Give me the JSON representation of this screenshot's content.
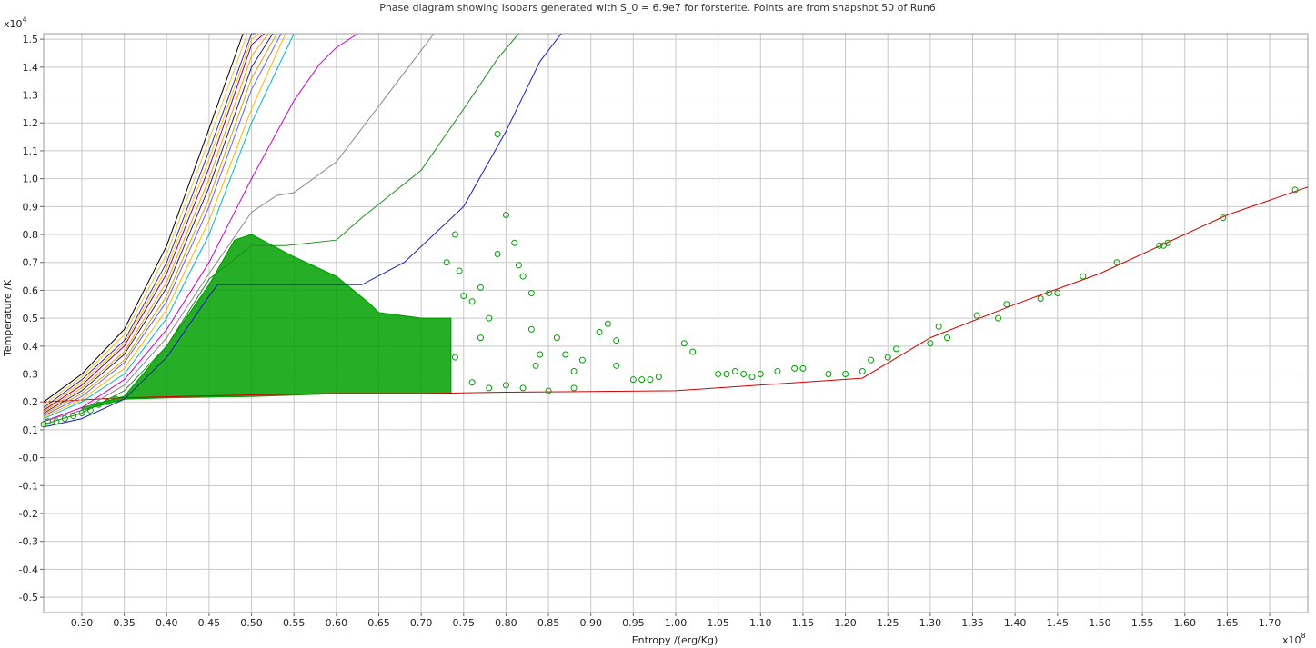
{
  "chart_data": {
    "type": "scatter",
    "title": "Phase diagram showing isobars generated with S_0 = 6.9e7 for forsterite. Points are from snapshot 50 of Run6",
    "xlabel": "Entropy /(erg/Kg)",
    "ylabel": "Temperature /K",
    "x_multiplier_label": "x10",
    "x_multiplier_exp": "8",
    "y_multiplier_label": "x10",
    "y_multiplier_exp": "4",
    "xlim": [
      0.255,
      1.745
    ],
    "ylim": [
      -0.555,
      1.52
    ],
    "x_ticks": [
      0.3,
      0.35,
      0.4,
      0.45,
      0.5,
      0.55,
      0.6,
      0.65,
      0.7,
      0.75,
      0.8,
      0.85,
      0.9,
      0.95,
      1.0,
      1.05,
      1.1,
      1.15,
      1.2,
      1.25,
      1.3,
      1.35,
      1.4,
      1.45,
      1.5,
      1.55,
      1.6,
      1.65,
      1.7
    ],
    "x_tick_labels": [
      "0.30",
      "0.35",
      "0.40",
      "0.45",
      "0.50",
      "0.55",
      "0.60",
      "0.65",
      "0.70",
      "0.75",
      "0.80",
      "0.85",
      "0.90",
      "0.95",
      "1.00",
      "1.05",
      "1.10",
      "1.15",
      "1.20",
      "1.25",
      "1.30",
      "1.35",
      "1.40",
      "1.45",
      "1.50",
      "1.55",
      "1.60",
      "1.65",
      "1.70"
    ],
    "y_ticks": [
      1.5,
      1.4,
      1.3,
      1.2,
      1.1,
      1.0,
      0.9,
      0.8,
      0.7,
      0.6,
      0.5,
      0.4,
      0.3,
      0.2,
      0.1,
      0.0,
      -0.1,
      -0.2,
      -0.3,
      -0.4,
      -0.5
    ],
    "y_tick_labels": [
      "1.5",
      "1.4",
      "1.3",
      "1.2",
      "1.1",
      "1.0",
      "0.9",
      "0.8",
      "0.7",
      "0.6",
      "0.5",
      "0.4",
      "0.3",
      "0.2",
      "0.1",
      "-0.0",
      "-0.1",
      "-0.2",
      "-0.3",
      "-0.4",
      "-0.5"
    ],
    "grid": true,
    "colors": {
      "points": "#00a000",
      "grid": "#c8c8c8",
      "phase_boundary": "#d00000"
    },
    "series": [
      {
        "color": "#d00000",
        "x": [
          0.255,
          0.35,
          0.5,
          0.6,
          0.7,
          0.8,
          1.0,
          1.22,
          1.3,
          1.4,
          1.5,
          1.6,
          1.65,
          1.745
        ],
        "y": [
          0.2,
          0.215,
          0.225,
          0.23,
          0.23,
          0.235,
          0.24,
          0.285,
          0.43,
          0.55,
          0.66,
          0.8,
          0.87,
          0.97
        ]
      },
      {
        "color": "#1a1acc",
        "x": [
          0.255,
          0.3,
          0.35,
          0.4,
          0.45,
          0.46,
          0.62,
          0.63,
          0.68,
          0.75,
          0.8,
          0.84,
          0.865
        ],
        "y": [
          0.11,
          0.14,
          0.21,
          0.36,
          0.58,
          0.62,
          0.62,
          0.62,
          0.7,
          0.9,
          1.17,
          1.42,
          1.52
        ]
      },
      {
        "color": "#1f8f1f",
        "x": [
          0.255,
          0.3,
          0.35,
          0.4,
          0.45,
          0.5,
          0.54,
          0.6,
          0.63,
          0.7,
          0.75,
          0.79,
          0.815
        ],
        "y": [
          0.12,
          0.16,
          0.24,
          0.4,
          0.64,
          0.76,
          0.76,
          0.78,
          0.86,
          1.03,
          1.25,
          1.43,
          1.52
        ]
      },
      {
        "color": "#888888",
        "x": [
          0.255,
          0.3,
          0.35,
          0.4,
          0.45,
          0.5,
          0.53,
          0.55,
          0.6,
          0.65,
          0.7,
          0.715
        ],
        "y": [
          0.13,
          0.17,
          0.26,
          0.43,
          0.66,
          0.88,
          0.94,
          0.95,
          1.06,
          1.26,
          1.46,
          1.52
        ]
      },
      {
        "color": "#cc00cc",
        "x": [
          0.255,
          0.3,
          0.35,
          0.4,
          0.45,
          0.5,
          0.55,
          0.58,
          0.6,
          0.625
        ],
        "y": [
          0.13,
          0.18,
          0.28,
          0.46,
          0.7,
          1.0,
          1.28,
          1.41,
          1.47,
          1.52
        ]
      },
      {
        "color": "#00b8c8",
        "x": [
          0.255,
          0.3,
          0.35,
          0.4,
          0.45,
          0.5,
          0.55
        ],
        "y": [
          0.14,
          0.2,
          0.3,
          0.5,
          0.8,
          1.2,
          1.52
        ]
      },
      {
        "color": "#ffb400",
        "x": [
          0.255,
          0.3,
          0.35,
          0.4,
          0.45,
          0.5,
          0.54
        ],
        "y": [
          0.145,
          0.21,
          0.32,
          0.53,
          0.85,
          1.25,
          1.52
        ]
      },
      {
        "color": "#6060ff",
        "x": [
          0.255,
          0.3,
          0.35,
          0.4,
          0.45,
          0.5,
          0.535
        ],
        "y": [
          0.15,
          0.22,
          0.34,
          0.56,
          0.9,
          1.32,
          1.52
        ]
      },
      {
        "color": "#e0a000",
        "x": [
          0.255,
          0.3,
          0.35,
          0.4,
          0.45,
          0.5,
          0.53
        ],
        "y": [
          0.155,
          0.23,
          0.35,
          0.58,
          0.93,
          1.36,
          1.52
        ]
      },
      {
        "color": "#202080",
        "x": [
          0.255,
          0.3,
          0.35,
          0.4,
          0.45,
          0.5,
          0.525
        ],
        "y": [
          0.16,
          0.24,
          0.37,
          0.61,
          0.97,
          1.4,
          1.52
        ]
      },
      {
        "color": "#ff9900",
        "x": [
          0.255,
          0.3,
          0.35,
          0.4,
          0.45,
          0.5,
          0.52
        ],
        "y": [
          0.165,
          0.25,
          0.38,
          0.63,
          1.0,
          1.44,
          1.52
        ]
      },
      {
        "color": "#800080",
        "x": [
          0.255,
          0.3,
          0.35,
          0.4,
          0.45,
          0.5,
          0.515
        ],
        "y": [
          0.17,
          0.26,
          0.4,
          0.66,
          1.04,
          1.48,
          1.52
        ]
      },
      {
        "color": "#ffc000",
        "x": [
          0.255,
          0.3,
          0.35,
          0.4,
          0.45,
          0.5,
          0.51
        ],
        "y": [
          0.175,
          0.27,
          0.41,
          0.68,
          1.07,
          1.5,
          1.52
        ]
      },
      {
        "color": "#3030a0",
        "x": [
          0.255,
          0.3,
          0.35,
          0.4,
          0.45,
          0.5,
          0.505
        ],
        "y": [
          0.18,
          0.28,
          0.42,
          0.7,
          1.1,
          1.52,
          1.52
        ]
      },
      {
        "color": "#f0c040",
        "x": [
          0.255,
          0.3,
          0.35,
          0.4,
          0.45,
          0.495
        ],
        "y": [
          0.19,
          0.29,
          0.44,
          0.73,
          1.14,
          1.52
        ]
      },
      {
        "color": "#000000",
        "x": [
          0.255,
          0.3,
          0.35,
          0.4,
          0.45,
          0.49
        ],
        "y": [
          0.2,
          0.3,
          0.46,
          0.76,
          1.18,
          1.52
        ]
      }
    ],
    "scatter_points": [
      [
        0.255,
        0.12
      ],
      [
        0.26,
        0.13
      ],
      [
        0.27,
        0.13
      ],
      [
        0.28,
        0.14
      ],
      [
        0.29,
        0.15
      ],
      [
        0.3,
        0.16
      ],
      [
        0.31,
        0.17
      ],
      [
        0.32,
        0.19
      ],
      [
        0.33,
        0.2
      ],
      [
        0.34,
        0.21
      ],
      [
        0.79,
        1.16
      ],
      [
        0.8,
        0.87
      ],
      [
        0.81,
        0.77
      ],
      [
        0.815,
        0.69
      ],
      [
        0.82,
        0.65
      ],
      [
        0.83,
        0.59
      ],
      [
        0.79,
        0.73
      ],
      [
        0.77,
        0.61
      ],
      [
        0.76,
        0.56
      ],
      [
        0.78,
        0.5
      ],
      [
        0.83,
        0.46
      ],
      [
        0.84,
        0.37
      ],
      [
        0.835,
        0.33
      ],
      [
        0.86,
        0.43
      ],
      [
        0.87,
        0.37
      ],
      [
        0.88,
        0.31
      ],
      [
        0.89,
        0.35
      ],
      [
        0.92,
        0.48
      ],
      [
        0.91,
        0.45
      ],
      [
        0.93,
        0.42
      ],
      [
        0.93,
        0.33
      ],
      [
        0.95,
        0.28
      ],
      [
        0.96,
        0.28
      ],
      [
        0.97,
        0.28
      ],
      [
        0.98,
        0.29
      ],
      [
        1.01,
        0.41
      ],
      [
        1.02,
        0.38
      ],
      [
        1.05,
        0.3
      ],
      [
        1.06,
        0.3
      ],
      [
        1.07,
        0.31
      ],
      [
        1.08,
        0.3
      ],
      [
        1.09,
        0.29
      ],
      [
        1.1,
        0.3
      ],
      [
        1.12,
        0.31
      ],
      [
        1.14,
        0.32
      ],
      [
        1.15,
        0.32
      ],
      [
        1.18,
        0.3
      ],
      [
        1.2,
        0.3
      ],
      [
        1.22,
        0.31
      ],
      [
        1.23,
        0.35
      ],
      [
        1.25,
        0.36
      ],
      [
        1.26,
        0.39
      ],
      [
        1.3,
        0.41
      ],
      [
        1.31,
        0.47
      ],
      [
        1.32,
        0.43
      ],
      [
        1.355,
        0.51
      ],
      [
        1.38,
        0.5
      ],
      [
        1.39,
        0.55
      ],
      [
        1.43,
        0.57
      ],
      [
        1.44,
        0.59
      ],
      [
        1.45,
        0.59
      ],
      [
        1.48,
        0.65
      ],
      [
        1.52,
        0.7
      ],
      [
        1.57,
        0.76
      ],
      [
        1.575,
        0.76
      ],
      [
        1.58,
        0.77
      ],
      [
        1.645,
        0.86
      ],
      [
        1.73,
        0.96
      ],
      [
        0.88,
        0.25
      ],
      [
        0.85,
        0.24
      ],
      [
        0.82,
        0.25
      ],
      [
        0.8,
        0.26
      ],
      [
        0.78,
        0.25
      ],
      [
        0.76,
        0.27
      ],
      [
        0.74,
        0.36
      ],
      [
        0.745,
        0.67
      ],
      [
        0.74,
        0.8
      ],
      [
        0.73,
        0.7
      ],
      [
        0.75,
        0.58
      ],
      [
        0.77,
        0.43
      ]
    ],
    "scatter_cluster": {
      "description_values": "dense cloud",
      "x_range": [
        0.3,
        0.735
      ],
      "ymin_at_x": [
        [
          0.3,
          0.17
        ],
        [
          0.35,
          0.21
        ],
        [
          0.4,
          0.215
        ],
        [
          0.5,
          0.22
        ],
        [
          0.6,
          0.23
        ],
        [
          0.735,
          0.23
        ]
      ],
      "ymax_at_x": [
        [
          0.3,
          0.18
        ],
        [
          0.35,
          0.22
        ],
        [
          0.4,
          0.4
        ],
        [
          0.45,
          0.62
        ],
        [
          0.48,
          0.78
        ],
        [
          0.5,
          0.8
        ],
        [
          0.55,
          0.72
        ],
        [
          0.6,
          0.65
        ],
        [
          0.62,
          0.6
        ],
        [
          0.64,
          0.55
        ],
        [
          0.65,
          0.52
        ],
        [
          0.7,
          0.5
        ],
        [
          0.735,
          0.5
        ]
      ]
    }
  }
}
